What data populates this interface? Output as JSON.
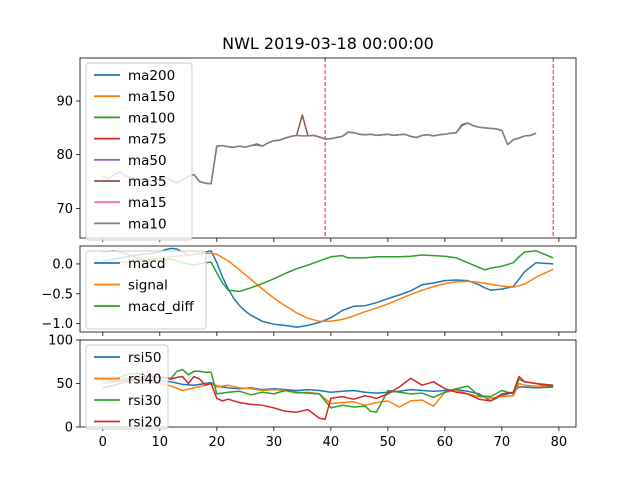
{
  "chart_data": [
    {
      "type": "line",
      "title": "NWL 2019-03-18 00:00:00",
      "xlim": [
        -4,
        83
      ],
      "ylim": [
        64.5,
        98
      ],
      "yticks": [
        70,
        80,
        90
      ],
      "xticks": [
        0,
        10,
        20,
        30,
        40,
        50,
        60,
        70,
        80
      ],
      "show_x_tick_labels": false,
      "vlines": [
        39,
        79
      ],
      "vline_color": "#d62728",
      "legend_loc": "upper left",
      "series": [
        {
          "name": "ma200",
          "color": "#1f77b4",
          "x": [],
          "values": []
        },
        {
          "name": "ma150",
          "color": "#ff7f0e",
          "x": [],
          "values": []
        },
        {
          "name": "ma100",
          "color": "#2ca02c",
          "x": [],
          "values": []
        },
        {
          "name": "ma75",
          "color": "#d62728",
          "x": [],
          "values": []
        },
        {
          "name": "ma50",
          "color": "#9467bd",
          "x": [],
          "values": []
        },
        {
          "name": "ma35",
          "color": "#8c564b",
          "x": [
            0,
            1,
            2,
            3,
            4,
            5,
            6,
            7,
            8,
            9,
            10,
            11,
            12,
            13,
            14,
            15,
            16,
            17,
            18,
            19,
            20,
            21,
            22,
            23,
            24,
            25,
            26,
            27,
            28,
            29,
            30,
            31,
            32,
            33,
            34,
            35,
            36,
            37,
            38,
            39,
            40,
            41,
            42,
            43,
            44,
            45,
            46,
            47,
            48,
            49,
            50,
            51,
            52,
            53,
            54,
            55,
            56,
            57,
            58,
            59,
            60,
            61,
            62,
            63,
            64,
            65,
            66,
            67,
            68,
            69,
            70,
            71,
            72,
            73,
            74,
            75,
            76
          ],
          "values": [
            76.0,
            75.6,
            76.3,
            76.8,
            76.0,
            75.8,
            75.5,
            75.3,
            75.2,
            75.0,
            75.5,
            75.8,
            75.2,
            74.8,
            75.3,
            76.0,
            76.3,
            75.0,
            74.7,
            74.6,
            81.6,
            81.7,
            81.5,
            81.4,
            81.6,
            81.4,
            81.7,
            82.0,
            81.6,
            82.2,
            82.6,
            82.7,
            83.1,
            83.4,
            83.6,
            87.4,
            83.5,
            83.6,
            83.3,
            82.9,
            83.0,
            83.2,
            83.4,
            84.2,
            84.1,
            83.8,
            83.7,
            83.8,
            83.6,
            83.7,
            83.8,
            83.6,
            83.7,
            83.8,
            83.4,
            83.2,
            83.6,
            83.7,
            83.5,
            83.7,
            83.8,
            84.0,
            84.1,
            85.6,
            85.9,
            85.4,
            85.1,
            85.0,
            84.9,
            84.8,
            84.5,
            81.9,
            82.8,
            83.1,
            83.5,
            83.6,
            84.0
          ]
        },
        {
          "name": "ma15",
          "color": "#e377c2",
          "x": [],
          "values": []
        },
        {
          "name": "ma10",
          "color": "#7f7f7f",
          "x": [
            0,
            1,
            2,
            3,
            4,
            5,
            6,
            7,
            8,
            9,
            10,
            11,
            12,
            13,
            14,
            15,
            16,
            17,
            18,
            19,
            20,
            21,
            22,
            23,
            24,
            25,
            26,
            27,
            28,
            29,
            30,
            31,
            32,
            33,
            34,
            35,
            36,
            37,
            38,
            39,
            40,
            41,
            42,
            43,
            44,
            45,
            46,
            47,
            48,
            49,
            50,
            51,
            52,
            53,
            54,
            55,
            56,
            57,
            58,
            59,
            60,
            61,
            62,
            63,
            64,
            65,
            66,
            67,
            68,
            69,
            70,
            71,
            72,
            73,
            74,
            75,
            76
          ],
          "values": [
            76.0,
            75.6,
            76.3,
            76.8,
            76.0,
            75.8,
            75.5,
            75.3,
            75.2,
            75.0,
            75.5,
            75.8,
            75.2,
            74.8,
            75.3,
            76.0,
            76.3,
            75.0,
            74.7,
            74.6,
            81.6,
            81.7,
            81.5,
            81.4,
            81.6,
            81.4,
            81.7,
            81.8,
            81.6,
            82.2,
            82.6,
            82.7,
            83.1,
            83.4,
            83.6,
            83.5,
            83.5,
            83.6,
            83.3,
            82.9,
            83.0,
            83.2,
            83.4,
            84.2,
            84.1,
            83.8,
            83.7,
            83.8,
            83.6,
            83.7,
            83.8,
            83.6,
            83.7,
            83.8,
            83.4,
            83.2,
            83.6,
            83.7,
            83.5,
            83.7,
            83.8,
            84.0,
            84.1,
            85.4,
            85.9,
            85.4,
            85.1,
            85.0,
            84.9,
            84.8,
            84.5,
            81.9,
            82.8,
            83.1,
            83.5,
            83.6,
            84.0
          ]
        }
      ]
    },
    {
      "type": "line",
      "title": "",
      "xlim": [
        -4,
        83
      ],
      "ylim": [
        -1.14,
        0.3
      ],
      "yticks": [
        -1.0,
        -0.5,
        0.0
      ],
      "ytick_labels": [
        "−1.0",
        "−0.5",
        "0.0"
      ],
      "xticks": [
        0,
        10,
        20,
        30,
        40,
        50,
        60,
        70,
        80
      ],
      "show_x_tick_labels": false,
      "legend_loc": "upper left",
      "series": [
        {
          "name": "macd",
          "color": "#1f77b4",
          "x": [
            0,
            2,
            4,
            6,
            8,
            10,
            11,
            12,
            13,
            14,
            15,
            16,
            17,
            18,
            19,
            20,
            21,
            22,
            23,
            24,
            25,
            26,
            28,
            30,
            32,
            34,
            36,
            38,
            40,
            41,
            42,
            44,
            46,
            48,
            50,
            52,
            54,
            56,
            58,
            60,
            62,
            64,
            66,
            67,
            68,
            70,
            72,
            74,
            76,
            79
          ],
          "values": [
            0.05,
            0.08,
            0.12,
            0.15,
            0.17,
            0.2,
            0.24,
            0.26,
            0.25,
            0.2,
            0.15,
            0.16,
            0.18,
            0.2,
            0.22,
            0.02,
            -0.22,
            -0.42,
            -0.58,
            -0.7,
            -0.79,
            -0.86,
            -0.96,
            -1.01,
            -1.03,
            -1.06,
            -1.03,
            -0.98,
            -0.9,
            -0.84,
            -0.78,
            -0.71,
            -0.7,
            -0.65,
            -0.58,
            -0.52,
            -0.45,
            -0.35,
            -0.32,
            -0.28,
            -0.27,
            -0.28,
            -0.35,
            -0.4,
            -0.44,
            -0.42,
            -0.38,
            -0.13,
            0.02,
            0.0
          ]
        },
        {
          "name": "signal",
          "color": "#ff7f0e",
          "x": [
            0,
            4,
            8,
            12,
            16,
            19,
            20,
            22,
            24,
            26,
            28,
            30,
            32,
            34,
            36,
            38,
            40,
            42,
            44,
            46,
            48,
            50,
            52,
            54,
            56,
            58,
            60,
            62,
            64,
            66,
            68,
            70,
            72,
            74,
            76,
            79
          ],
          "values": [
            0.0,
            0.03,
            0.07,
            0.12,
            0.16,
            0.18,
            0.16,
            0.05,
            -0.1,
            -0.26,
            -0.42,
            -0.57,
            -0.7,
            -0.82,
            -0.91,
            -0.96,
            -0.96,
            -0.93,
            -0.87,
            -0.8,
            -0.74,
            -0.67,
            -0.59,
            -0.51,
            -0.44,
            -0.38,
            -0.33,
            -0.3,
            -0.29,
            -0.31,
            -0.34,
            -0.37,
            -0.39,
            -0.34,
            -0.22,
            -0.09
          ]
        },
        {
          "name": "macd_diff",
          "color": "#2ca02c",
          "x": [
            0,
            2,
            4,
            6,
            8,
            10,
            12,
            14,
            16,
            18,
            19,
            20,
            21,
            22,
            24,
            26,
            28,
            30,
            32,
            34,
            36,
            38,
            40,
            42,
            43,
            44,
            46,
            48,
            50,
            52,
            54,
            56,
            58,
            60,
            62,
            64,
            66,
            67,
            68,
            70,
            72,
            73,
            74,
            76,
            79
          ],
          "values": [
            0.2,
            0.22,
            0.18,
            0.1,
            0.05,
            0.06,
            0.08,
            0.02,
            -0.02,
            0.02,
            0.03,
            -0.15,
            -0.32,
            -0.44,
            -0.46,
            -0.4,
            -0.33,
            -0.25,
            -0.16,
            -0.08,
            -0.02,
            0.05,
            0.12,
            0.14,
            0.1,
            0.1,
            0.1,
            0.12,
            0.12,
            0.12,
            0.13,
            0.15,
            0.14,
            0.13,
            0.1,
            0.02,
            -0.06,
            -0.1,
            -0.07,
            -0.04,
            0.02,
            0.12,
            0.2,
            0.22,
            0.1
          ]
        }
      ]
    },
    {
      "type": "line",
      "title": "",
      "xlim": [
        -4,
        83
      ],
      "ylim": [
        0,
        100
      ],
      "yticks": [
        0,
        50,
        100
      ],
      "xticks": [
        0,
        10,
        20,
        30,
        40,
        50,
        60,
        70,
        80
      ],
      "show_x_tick_labels": true,
      "legend_loc": "upper left",
      "series": [
        {
          "name": "rsi50",
          "color": "#1f77b4",
          "x": [
            0,
            2,
            4,
            6,
            8,
            10,
            12,
            14,
            16,
            18,
            19,
            20,
            22,
            24,
            26,
            28,
            30,
            32,
            34,
            36,
            38,
            40,
            42,
            44,
            46,
            48,
            50,
            52,
            54,
            56,
            58,
            60,
            62,
            64,
            66,
            67,
            68,
            70,
            72,
            73,
            74,
            76,
            79
          ],
          "values": [
            50,
            52,
            54,
            55,
            54,
            53,
            52,
            49,
            48,
            50,
            51,
            47,
            45,
            44,
            45,
            43,
            44,
            43,
            42,
            43,
            42,
            40,
            41,
            42,
            40,
            39,
            40,
            41,
            43,
            42,
            41,
            42,
            43,
            41,
            38,
            34,
            30,
            36,
            40,
            46,
            46,
            45,
            46
          ]
        },
        {
          "name": "rsi40",
          "color": "#ff7f0e",
          "x": [
            0,
            2,
            4,
            6,
            8,
            10,
            12,
            14,
            16,
            18,
            19,
            20,
            22,
            24,
            26,
            28,
            30,
            32,
            34,
            36,
            38,
            40,
            42,
            44,
            46,
            48,
            50,
            52,
            54,
            56,
            58,
            60,
            62,
            64,
            66,
            68,
            70,
            72,
            73,
            74,
            76,
            79
          ],
          "values": [
            50,
            53,
            56,
            55,
            52,
            50,
            47,
            42,
            45,
            48,
            50,
            46,
            48,
            45,
            44,
            42,
            43,
            42,
            39,
            40,
            38,
            27,
            28,
            29,
            25,
            28,
            30,
            23,
            30,
            31,
            24,
            40,
            42,
            38,
            35,
            33,
            35,
            36,
            50,
            48,
            47,
            47
          ]
        },
        {
          "name": "rsi30",
          "color": "#2ca02c",
          "x": [
            0,
            2,
            4,
            6,
            8,
            10,
            12,
            13,
            14,
            15,
            16,
            17,
            18,
            19,
            20,
            22,
            24,
            26,
            28,
            30,
            32,
            34,
            36,
            38,
            40,
            42,
            44,
            46,
            47,
            48,
            50,
            52,
            54,
            56,
            58,
            60,
            62,
            64,
            66,
            68,
            70,
            72,
            73,
            74,
            76,
            79
          ],
          "values": [
            55,
            54,
            60,
            62,
            58,
            57,
            56,
            64,
            66,
            60,
            64,
            64,
            63,
            63,
            38,
            40,
            41,
            37,
            40,
            38,
            42,
            40,
            39,
            38,
            22,
            25,
            23,
            24,
            18,
            17,
            42,
            40,
            38,
            39,
            34,
            40,
            44,
            47,
            36,
            35,
            42,
            38,
            55,
            52,
            50,
            46
          ]
        },
        {
          "name": "rsi20",
          "color": "#d62728",
          "x": [
            0,
            2,
            4,
            6,
            8,
            10,
            12,
            13,
            14,
            15,
            16,
            17,
            18,
            19,
            20,
            21,
            22,
            24,
            26,
            28,
            30,
            32,
            34,
            36,
            38,
            39,
            40,
            42,
            44,
            46,
            48,
            50,
            52,
            54,
            56,
            58,
            60,
            62,
            64,
            66,
            68,
            70,
            72,
            73,
            74,
            76,
            79
          ],
          "values": [
            45,
            48,
            52,
            56,
            59,
            57,
            55,
            57,
            58,
            50,
            58,
            55,
            48,
            50,
            33,
            30,
            32,
            28,
            26,
            25,
            22,
            18,
            17,
            20,
            10,
            9,
            33,
            35,
            32,
            36,
            33,
            38,
            46,
            56,
            48,
            52,
            44,
            40,
            38,
            32,
            30,
            38,
            40,
            58,
            52,
            50,
            48
          ]
        }
      ]
    }
  ]
}
